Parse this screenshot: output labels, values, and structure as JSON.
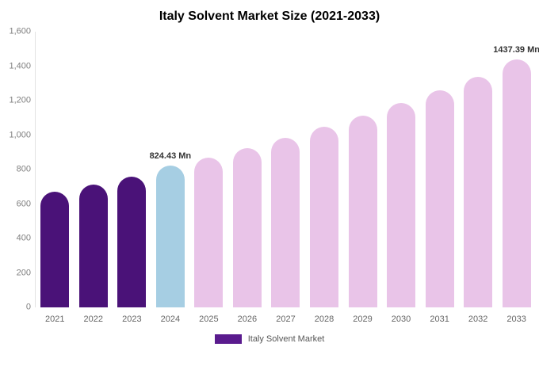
{
  "chart_data": {
    "type": "bar",
    "title": "Italy Solvent Market Size (2021-2033)",
    "categories": [
      "2021",
      "2022",
      "2023",
      "2024",
      "2025",
      "2026",
      "2027",
      "2028",
      "2029",
      "2030",
      "2031",
      "2032",
      "2033"
    ],
    "values": [
      670,
      712,
      758,
      824.43,
      868,
      925,
      985,
      1048,
      1112,
      1185,
      1258,
      1338,
      1437.39
    ],
    "unit": "Mn",
    "ylim": [
      0,
      1600
    ],
    "yticks": [
      "0",
      "200",
      "400",
      "600",
      "800",
      "1,000",
      "1,200",
      "1,400",
      "1,600"
    ],
    "bar_colors": [
      "#4A1278",
      "#4A1278",
      "#4A1278",
      "#A6CEE3",
      "#E9C4E8",
      "#E9C4E8",
      "#E9C4E8",
      "#E9C4E8",
      "#E9C4E8",
      "#E9C4E8",
      "#E9C4E8",
      "#E9C4E8",
      "#E9C4E8"
    ],
    "value_labels": [
      "",
      "",
      "",
      "824.43 Mn",
      "",
      "",
      "",
      "",
      "",
      "",
      "",
      "",
      "1437.39 Mn"
    ],
    "grid": false,
    "legend_position": "bottom",
    "legend": [
      {
        "label": "Italy Solvent Market",
        "color": "#5A1B8E"
      }
    ]
  }
}
